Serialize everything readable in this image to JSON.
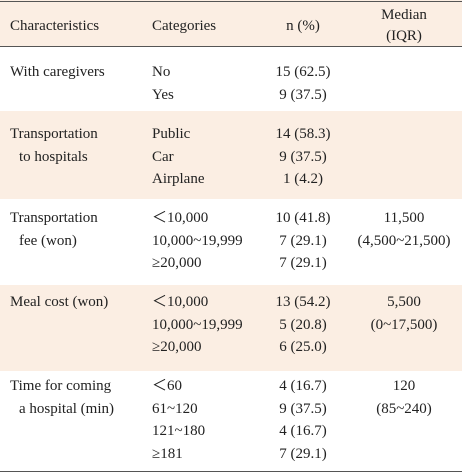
{
  "header": [
    "Characteristics",
    "Categories",
    "n (%)",
    [
      "Median",
      "(IQR)"
    ]
  ],
  "groups": [
    {
      "characteristic": [
        "With caregivers"
      ],
      "rows": [
        {
          "category": "No",
          "n": "15 (62.5)"
        },
        {
          "category": "Yes",
          "n": "9 (37.5)"
        }
      ],
      "median": []
    },
    {
      "characteristic": [
        "Transportation",
        "to hospitals"
      ],
      "rows": [
        {
          "category": "Public",
          "n": "14 (58.3)"
        },
        {
          "category": "Car",
          "n": "9 (37.5)"
        },
        {
          "category": "Airplane",
          "n": "1 (4.2)"
        }
      ],
      "median": []
    },
    {
      "characteristic": [
        "Transportation",
        "fee (won)"
      ],
      "rows": [
        {
          "category": "＜10,000",
          "n": "10 (41.8)"
        },
        {
          "category": "10,000~19,999",
          "n": "7 (29.1)"
        },
        {
          "category": "≥20,000",
          "n": "7 (29.1)"
        }
      ],
      "median": [
        "11,500",
        "(4,500~21,500)"
      ]
    },
    {
      "characteristic": [
        "Meal cost (won)"
      ],
      "rows": [
        {
          "category": "＜10,000",
          "n": "13 (54.2)"
        },
        {
          "category": "10,000~19,999",
          "n": "5 (20.8)"
        },
        {
          "category": "≥20,000",
          "n": "6 (25.0)"
        }
      ],
      "median": [
        "5,500",
        "(0~17,500)"
      ]
    },
    {
      "characteristic": [
        "Time for coming",
        "a hospital (min)"
      ],
      "rows": [
        {
          "category": "＜60",
          "n": "4 (16.7)"
        },
        {
          "category": "61~120",
          "n": "9 (37.5)"
        },
        {
          "category": "121~180",
          "n": "4 (16.7)"
        },
        {
          "category": "≥181",
          "n": "7 (29.1)"
        }
      ],
      "median": [
        "120",
        "(85~240)"
      ]
    }
  ]
}
